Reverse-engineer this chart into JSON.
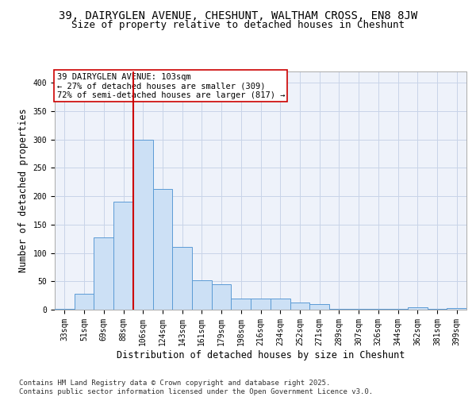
{
  "title_line1": "39, DAIRYGLEN AVENUE, CHESHUNT, WALTHAM CROSS, EN8 8JW",
  "title_line2": "Size of property relative to detached houses in Cheshunt",
  "xlabel": "Distribution of detached houses by size in Cheshunt",
  "ylabel": "Number of detached properties",
  "bin_labels": [
    "33sqm",
    "51sqm",
    "69sqm",
    "88sqm",
    "106sqm",
    "124sqm",
    "143sqm",
    "161sqm",
    "179sqm",
    "198sqm",
    "216sqm",
    "234sqm",
    "252sqm",
    "271sqm",
    "289sqm",
    "307sqm",
    "326sqm",
    "344sqm",
    "362sqm",
    "381sqm",
    "399sqm"
  ],
  "bar_heights": [
    2,
    28,
    128,
    190,
    300,
    213,
    110,
    52,
    45,
    20,
    20,
    20,
    13,
    10,
    1,
    1,
    1,
    1,
    4,
    1,
    3
  ],
  "bar_color": "#cce0f5",
  "bar_edge_color": "#5b9bd5",
  "vline_x_index": 4,
  "vline_color": "#cc0000",
  "annotation_text": "39 DAIRYGLEN AVENUE: 103sqm\n← 27% of detached houses are smaller (309)\n72% of semi-detached houses are larger (817) →",
  "annotation_box_color": "#ffffff",
  "annotation_box_edge": "#cc0000",
  "ylim": [
    0,
    420
  ],
  "yticks": [
    0,
    50,
    100,
    150,
    200,
    250,
    300,
    350,
    400
  ],
  "grid_color": "#c8d4e8",
  "bg_color": "#eef2fa",
  "footer": "Contains HM Land Registry data © Crown copyright and database right 2025.\nContains public sector information licensed under the Open Government Licence v3.0.",
  "title_fontsize": 10,
  "subtitle_fontsize": 9,
  "label_fontsize": 8.5,
  "tick_fontsize": 7,
  "annotation_fontsize": 7.5,
  "footer_fontsize": 6.5
}
